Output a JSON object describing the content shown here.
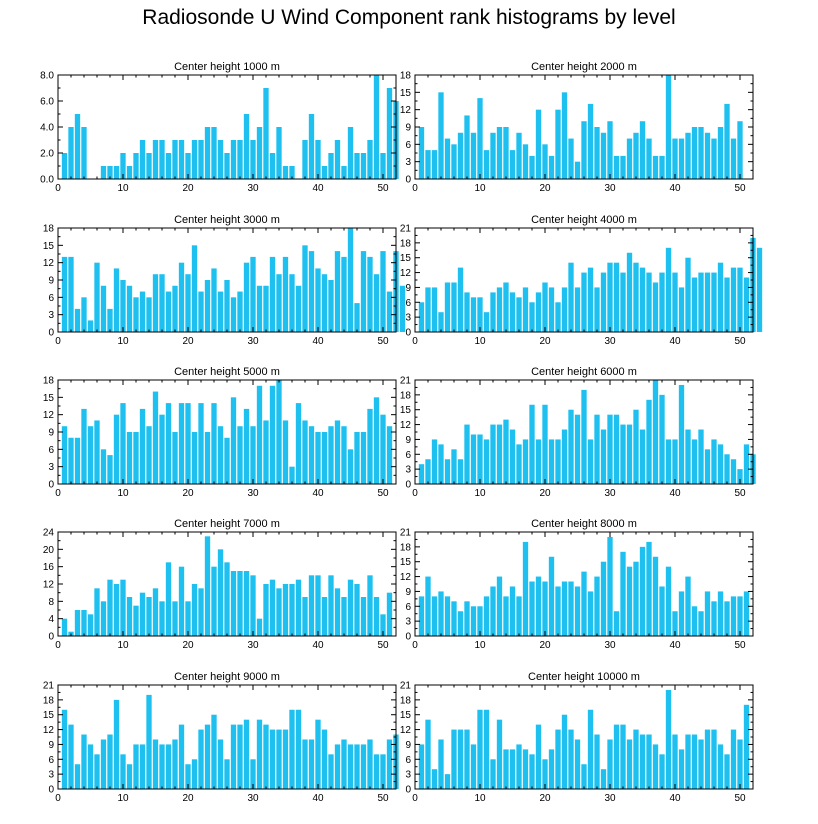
{
  "title": "Radiosonde U Wind Component rank histograms by level",
  "colors": {
    "bar": "#1ec0f0",
    "axis": "#000000",
    "background": "#ffffff"
  },
  "chart_data": [
    {
      "type": "bar",
      "title": "Center height 1000 m",
      "xlim": [
        0,
        52
      ],
      "ylim": [
        0,
        8.0
      ],
      "xticks": [
        "0",
        "10",
        "20",
        "30",
        "40",
        "50"
      ],
      "yticks": [
        "0.0",
        "2.0",
        "4.0",
        "6.0",
        "8.0"
      ],
      "values": [
        2,
        4,
        5,
        4,
        0,
        0,
        1,
        1,
        1,
        2,
        1,
        2,
        3,
        2,
        3,
        3,
        2,
        3,
        3,
        2,
        3,
        3,
        4,
        4,
        3,
        2,
        3,
        3,
        5,
        3,
        4,
        7,
        2,
        4,
        1,
        1,
        0,
        3,
        5,
        3,
        1,
        2,
        3,
        1,
        4,
        2,
        2,
        3,
        8,
        2,
        7,
        6
      ]
    },
    {
      "type": "bar",
      "title": "Center height 2000 m",
      "xlim": [
        0,
        52
      ],
      "ylim": [
        0,
        18
      ],
      "xticks": [
        "0",
        "10",
        "20",
        "30",
        "40",
        "50"
      ],
      "yticks": [
        "0",
        "3",
        "6",
        "9",
        "12",
        "15",
        "18"
      ],
      "values": [
        9,
        5,
        5,
        15,
        7,
        6,
        8,
        11,
        8,
        14,
        5,
        8,
        9,
        9,
        5,
        8,
        6,
        4,
        12,
        6,
        4,
        12,
        15,
        7,
        3,
        10,
        13,
        9,
        8,
        10,
        4,
        4,
        7,
        8,
        10,
        7,
        4,
        4,
        18,
        7,
        7,
        8,
        9,
        9,
        8,
        7,
        9,
        13,
        7,
        10,
        0,
        0
      ]
    },
    {
      "type": "bar",
      "title": "Center height 3000 m",
      "xlim": [
        0,
        52
      ],
      "ylim": [
        0,
        18
      ],
      "xticks": [
        "0",
        "10",
        "20",
        "30",
        "40",
        "50"
      ],
      "yticks": [
        "0",
        "3",
        "6",
        "9",
        "12",
        "15",
        "18"
      ],
      "values": [
        13,
        13,
        4,
        6,
        2,
        12,
        8,
        4,
        11,
        9,
        8,
        6,
        7,
        6,
        10,
        10,
        7,
        8,
        12,
        10,
        15,
        7,
        9,
        11,
        7,
        9,
        6,
        7,
        12,
        13,
        8,
        8,
        13,
        10,
        13,
        10,
        8,
        15,
        14,
        11,
        10,
        9,
        14,
        13,
        18,
        5,
        14,
        13,
        10,
        14,
        7,
        14,
        8
      ]
    },
    {
      "type": "bar",
      "title": "Center height 4000 m",
      "xlim": [
        0,
        52
      ],
      "ylim": [
        0,
        21
      ],
      "xticks": [
        "0",
        "10",
        "20",
        "30",
        "40",
        "50"
      ],
      "yticks": [
        "0",
        "3",
        "6",
        "9",
        "12",
        "15",
        "18",
        "21"
      ],
      "values": [
        6,
        9,
        9,
        4,
        10,
        10,
        13,
        8,
        7,
        7,
        4,
        8,
        9,
        10,
        8,
        7,
        9,
        6,
        8,
        10,
        9,
        6,
        9,
        14,
        9,
        12,
        13,
        9,
        12,
        14,
        14,
        12,
        16,
        14,
        13,
        12,
        10,
        12,
        17,
        12,
        9,
        15,
        11,
        12,
        12,
        12,
        14,
        11,
        13,
        13,
        11,
        19,
        17
      ]
    },
    {
      "type": "bar",
      "title": "Center height 5000 m",
      "xlim": [
        0,
        52
      ],
      "ylim": [
        0,
        18
      ],
      "xticks": [
        "0",
        "10",
        "20",
        "30",
        "40",
        "50"
      ],
      "yticks": [
        "0",
        "3",
        "6",
        "9",
        "12",
        "15",
        "18"
      ],
      "values": [
        10,
        8,
        8,
        13,
        10,
        11,
        6,
        5,
        12,
        14,
        9,
        9,
        13,
        10,
        16,
        12,
        14,
        9,
        14,
        14,
        9,
        14,
        9,
        14,
        10,
        8,
        15,
        10,
        13,
        10,
        17,
        11,
        17,
        18,
        11,
        3,
        14,
        11,
        10,
        9,
        9,
        10,
        11,
        10,
        6,
        9,
        9,
        13,
        15,
        12,
        10
      ]
    },
    {
      "type": "bar",
      "title": "Center height 6000 m",
      "xlim": [
        0,
        52
      ],
      "ylim": [
        0,
        21
      ],
      "xticks": [
        "0",
        "10",
        "20",
        "30",
        "40",
        "50"
      ],
      "yticks": [
        "0",
        "3",
        "6",
        "9",
        "12",
        "15",
        "18",
        "21"
      ],
      "values": [
        4,
        5,
        9,
        8,
        5,
        7,
        5,
        12,
        10,
        10,
        9,
        12,
        12,
        13,
        11,
        8,
        9,
        16,
        9,
        16,
        9,
        9,
        11,
        15,
        14,
        19,
        9,
        14,
        11,
        14,
        14,
        12,
        12,
        15,
        11,
        17,
        21,
        18,
        9,
        9,
        20,
        11,
        9,
        11,
        7,
        9,
        8,
        6,
        5,
        3,
        8,
        6
      ]
    },
    {
      "type": "bar",
      "title": "Center height 7000 m",
      "xlim": [
        0,
        52
      ],
      "ylim": [
        0,
        24
      ],
      "xticks": [
        "0",
        "10",
        "20",
        "30",
        "40",
        "50"
      ],
      "yticks": [
        "0",
        "4",
        "8",
        "12",
        "16",
        "20",
        "24"
      ],
      "values": [
        4,
        1,
        6,
        6,
        5,
        11,
        8,
        13,
        12,
        13,
        9,
        7,
        10,
        9,
        11,
        8,
        17,
        8,
        16,
        8,
        12,
        11,
        23,
        16,
        20,
        17,
        15,
        15,
        15,
        14,
        4,
        12,
        13,
        11,
        12,
        12,
        13,
        9,
        14,
        14,
        9,
        14,
        11,
        9,
        13,
        12,
        9,
        14,
        9,
        5,
        10
      ]
    },
    {
      "type": "bar",
      "title": "Center height 8000 m",
      "xlim": [
        0,
        52
      ],
      "ylim": [
        0,
        21
      ],
      "xticks": [
        "0",
        "10",
        "20",
        "30",
        "40",
        "50"
      ],
      "yticks": [
        "0",
        "3",
        "6",
        "9",
        "12",
        "15",
        "18",
        "21"
      ],
      "values": [
        8,
        12,
        8,
        9,
        8,
        7,
        5,
        7,
        6,
        6,
        8,
        10,
        12,
        8,
        10,
        8,
        19,
        11,
        12,
        11,
        16,
        10,
        11,
        11,
        10,
        13,
        9,
        12,
        15,
        20,
        5,
        17,
        14,
        15,
        18,
        19,
        16,
        10,
        14,
        5,
        9,
        12,
        6,
        5,
        9,
        7,
        9,
        7,
        8,
        8,
        9
      ]
    },
    {
      "type": "bar",
      "title": "Center height 9000 m",
      "xlim": [
        0,
        52
      ],
      "ylim": [
        0,
        21
      ],
      "xticks": [
        "0",
        "10",
        "20",
        "30",
        "40",
        "50"
      ],
      "yticks": [
        "0",
        "3",
        "6",
        "9",
        "12",
        "15",
        "18",
        "21"
      ],
      "values": [
        16,
        13,
        5,
        11,
        9,
        7,
        10,
        11,
        18,
        7,
        5,
        9,
        9,
        19,
        10,
        9,
        9,
        10,
        13,
        5,
        6,
        12,
        13,
        15,
        10,
        6,
        13,
        13,
        14,
        6,
        14,
        13,
        12,
        12,
        12,
        16,
        16,
        10,
        10,
        14,
        12,
        7,
        9,
        10,
        9,
        9,
        9,
        10,
        7,
        7,
        10,
        11
      ]
    },
    {
      "type": "bar",
      "title": "Center height 10000 m",
      "xlim": [
        0,
        52
      ],
      "ylim": [
        0,
        21
      ],
      "xticks": [
        "0",
        "10",
        "20",
        "30",
        "40",
        "50"
      ],
      "yticks": [
        "0",
        "3",
        "6",
        "9",
        "12",
        "15",
        "18",
        "21"
      ],
      "values": [
        9,
        14,
        4,
        10,
        3,
        12,
        12,
        12,
        9,
        16,
        16,
        6,
        14,
        8,
        8,
        9,
        8,
        7,
        13,
        6,
        8,
        12,
        15,
        12,
        10,
        5,
        16,
        11,
        4,
        10,
        13,
        13,
        10,
        12,
        11,
        11,
        9,
        7,
        20,
        11,
        8,
        11,
        11,
        10,
        12,
        12,
        9,
        7,
        12,
        10,
        17
      ]
    }
  ]
}
